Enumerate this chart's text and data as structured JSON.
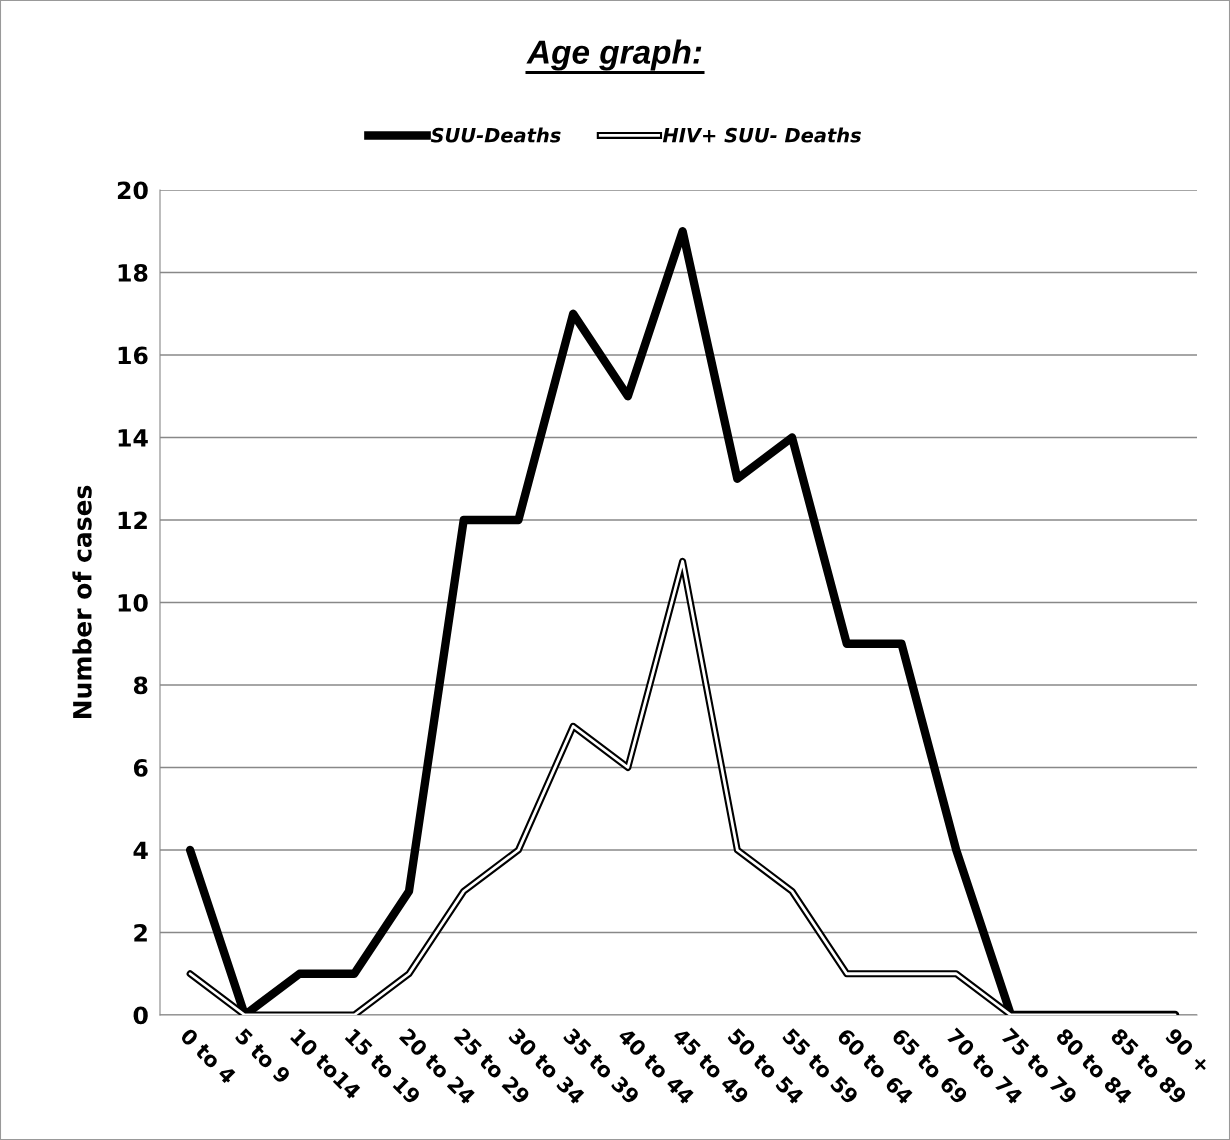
{
  "chart_data": {
    "type": "line",
    "title": "Age graph:",
    "ylabel": "Number of cases",
    "categories": [
      "0 to 4",
      "5 to 9",
      "10 to14",
      "15 to 19",
      "20 to 24",
      "25 to 29",
      "30 to 34",
      "35 to 39",
      "40 to 44",
      "45 to 49",
      "50 to 54",
      "55 to 59",
      "60 to 64",
      "65 to 69",
      "70 to 74",
      "75 to 79",
      "80 to 84",
      "85 to 89",
      "90 +"
    ],
    "series": [
      {
        "name": "SUU-Deaths",
        "color": "#000000",
        "values": [
          4,
          0,
          1,
          1,
          3,
          12,
          12,
          17,
          15,
          19,
          13,
          14,
          9,
          9,
          4,
          0,
          0,
          0,
          0
        ]
      },
      {
        "name": "HIV+ SUU- Deaths",
        "color": "#000000",
        "values": [
          1,
          0,
          0,
          0,
          1,
          3,
          4,
          7,
          6,
          11,
          4,
          3,
          1,
          1,
          1,
          0,
          0,
          0,
          0
        ]
      }
    ],
    "ylim": [
      0,
      20
    ],
    "yticks": [
      0,
      2,
      4,
      6,
      8,
      10,
      12,
      14,
      16,
      18,
      20
    ],
    "grid": "y",
    "legend": "top",
    "marker": "none",
    "line_style": "solid"
  }
}
